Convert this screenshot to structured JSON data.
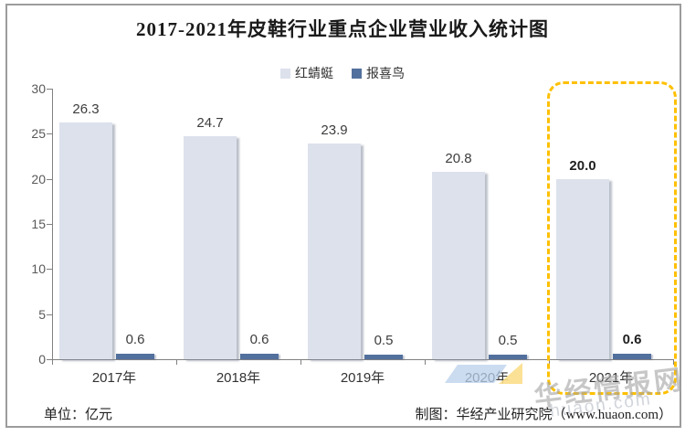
{
  "chart_data": {
    "type": "bar",
    "title": "2017-2021年皮鞋行业重点企业营业收入统计图",
    "categories": [
      "2017年",
      "2018年",
      "2019年",
      "2020年",
      "2021年"
    ],
    "series": [
      {
        "name": "红蜻蜓",
        "color": "#dce1ec",
        "values": [
          26.3,
          24.7,
          23.9,
          20.8,
          20.0
        ],
        "labels": [
          "26.3",
          "24.7",
          "23.9",
          "20.8",
          "20.0"
        ]
      },
      {
        "name": "报喜鸟",
        "color": "#52709d",
        "values": [
          0.6,
          0.6,
          0.5,
          0.5,
          0.6
        ],
        "labels": [
          "0.6",
          "0.6",
          "0.5",
          "0.5",
          "0.6"
        ]
      }
    ],
    "xlabel": "",
    "ylabel": "",
    "ylim": [
      0,
      30
    ],
    "yticks": [
      0,
      5,
      10,
      15,
      20,
      25,
      30
    ],
    "grid": false,
    "legend_position": "top",
    "highlight_category": "2021年",
    "highlight_color": "#ffc000"
  },
  "footer": {
    "unit_label": "单位：亿元",
    "source_label": "制图：华经产业研究院（www.huaon.com）"
  },
  "watermark": {
    "text": "华经情报网",
    "subtext": "huaon.com"
  }
}
